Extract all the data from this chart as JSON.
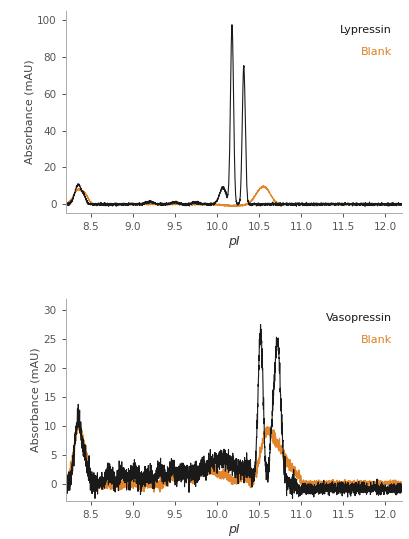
{
  "top_panel": {
    "ylabel": "Absorbance (mAU)",
    "xlabel": "pI",
    "xlim": [
      8.2,
      12.2
    ],
    "ylim": [
      -5,
      105
    ],
    "yticks": [
      0,
      20,
      40,
      60,
      80,
      100
    ],
    "xticks": [
      8.5,
      9.0,
      9.5,
      10.0,
      10.5,
      11.0,
      11.5,
      12.0
    ],
    "legend_label_black": "Lypressin",
    "legend_label_orange": "Blank",
    "color_black": "#1a1a1a",
    "color_orange": "#e08020"
  },
  "bottom_panel": {
    "ylabel": "Absorbance (mAU)",
    "xlabel": "pI",
    "xlim": [
      8.2,
      12.2
    ],
    "ylim": [
      -3,
      32
    ],
    "yticks": [
      0,
      5,
      10,
      15,
      20,
      25,
      30
    ],
    "xticks": [
      8.5,
      9.0,
      9.5,
      10.0,
      10.5,
      11.0,
      11.5,
      12.0
    ],
    "legend_label_black": "Vasopressin",
    "legend_label_orange": "Blank",
    "color_black": "#1a1a1a",
    "color_orange": "#e08020"
  },
  "background_color": "#ffffff",
  "figure_bg": "#ffffff"
}
